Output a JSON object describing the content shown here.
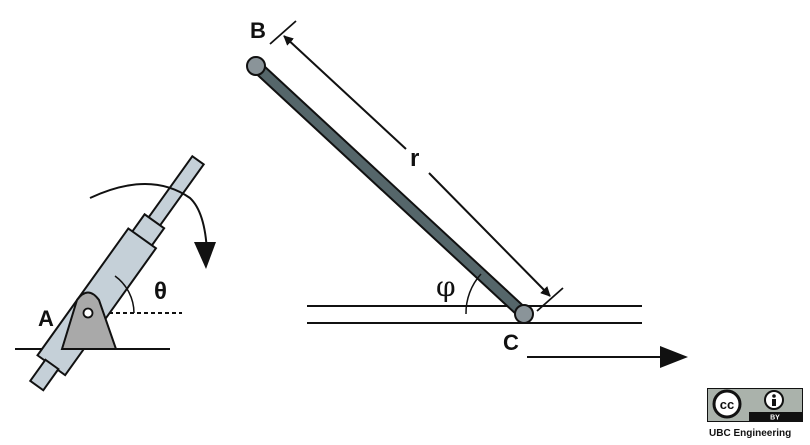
{
  "labels": {
    "point_a": "A",
    "point_b": "B",
    "point_c": "C",
    "length_r": "r",
    "angle_theta": "θ",
    "angle_phi": "φ"
  },
  "license": {
    "cc": "cc",
    "by": "BY",
    "credit": "UBC Engineering"
  },
  "colors": {
    "cylinder": "#c5d0d8",
    "rod": "#55666a",
    "pivot_base": "#a9a9a9",
    "joint": "#8a9499",
    "line": "#111111"
  }
}
